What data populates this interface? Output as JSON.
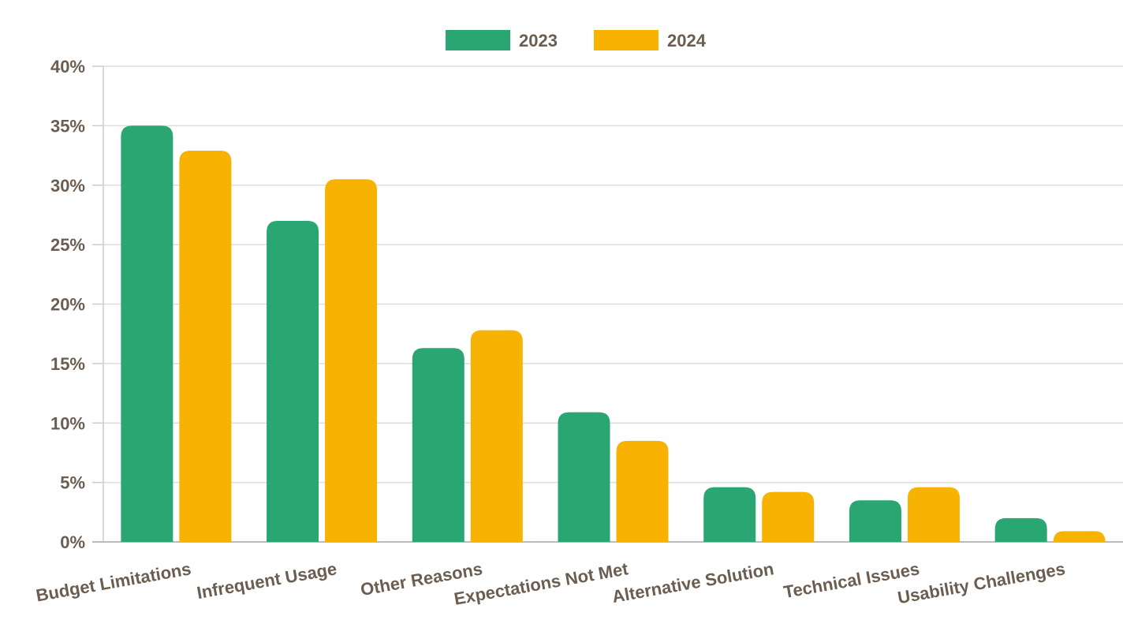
{
  "chart_data": {
    "type": "bar",
    "title": "",
    "xlabel": "",
    "ylabel": "",
    "categories": [
      "Budget Limitations",
      "Infrequent Usage",
      "Other Reasons",
      "Expectations Not Met",
      "Alternative Solution",
      "Technical Issues",
      "Usability Challenges"
    ],
    "series": [
      {
        "name": "2023",
        "color": "#2aa673",
        "values": [
          35.0,
          27.0,
          16.3,
          10.9,
          4.6,
          3.5,
          2.0
        ]
      },
      {
        "name": "2024",
        "color": "#f7b202",
        "values": [
          32.9,
          30.5,
          17.8,
          8.5,
          4.2,
          4.6,
          0.9
        ]
      }
    ],
    "ylim": [
      0,
      40
    ],
    "yticks": [
      0,
      5,
      10,
      15,
      20,
      25,
      30,
      35,
      40
    ],
    "ytick_labels": [
      "0%",
      "5%",
      "10%",
      "15%",
      "20%",
      "25%",
      "30%",
      "35%",
      "40%"
    ],
    "grid": true,
    "legend_position": "top-center",
    "text_color": "#6b5d4f",
    "grid_color": "#dddddd"
  }
}
